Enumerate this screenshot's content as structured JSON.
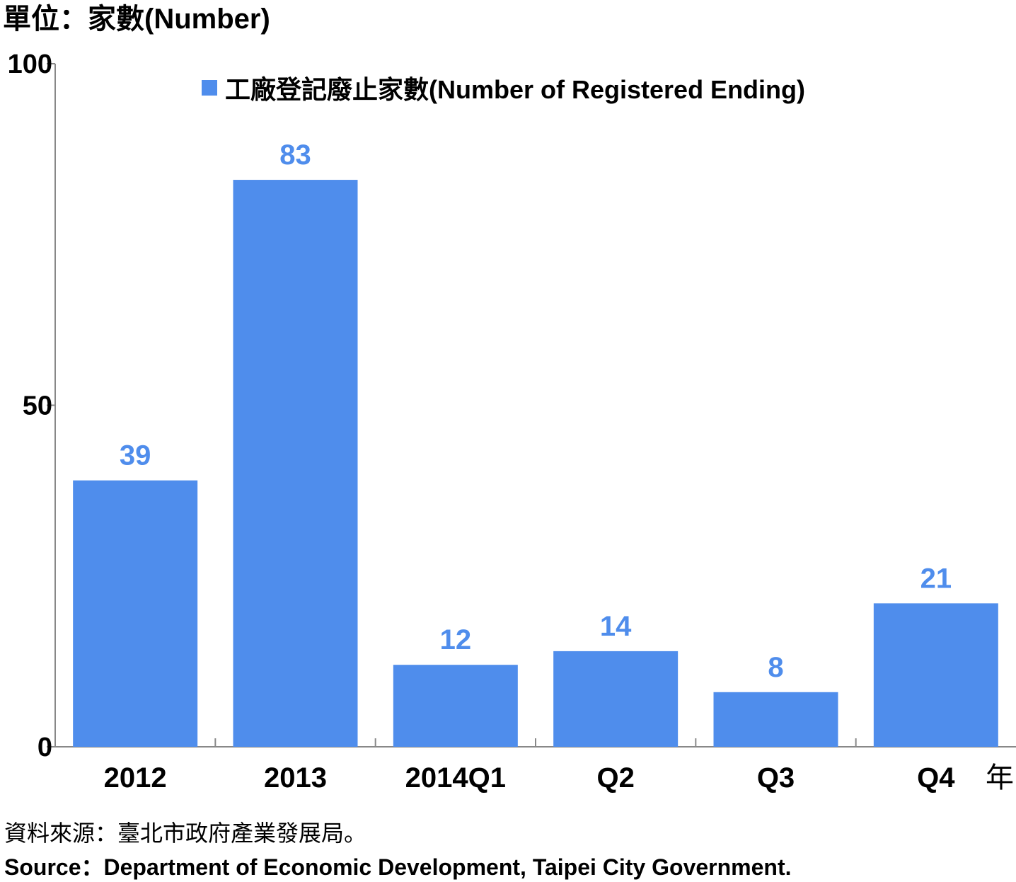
{
  "unit_label": "單位：家數(Number)",
  "x_unit_suffix": "年",
  "source_zh": "資料來源：臺北市政府產業發展局。",
  "source_en": "Source：Department of Economic Development, Taipei City Government.",
  "colors": {
    "bar": "#4f8dec",
    "value_label": "#4f8dec",
    "axis": "#888888"
  },
  "chart_data": {
    "type": "bar",
    "title": "",
    "xlabel": "",
    "ylabel": "單位：家數(Number)",
    "categories": [
      "2012",
      "2013",
      "2014Q1",
      "Q2",
      "Q3",
      "Q4"
    ],
    "series": [
      {
        "name": "工廠登記廢止家數(Number of Registered Ending)",
        "values": [
          39,
          83,
          12,
          14,
          8,
          21
        ]
      }
    ],
    "ylim": [
      0,
      100
    ],
    "yticks": [
      0,
      50,
      100
    ],
    "grid": false,
    "legend_position": "top-center",
    "data_labels": true
  }
}
